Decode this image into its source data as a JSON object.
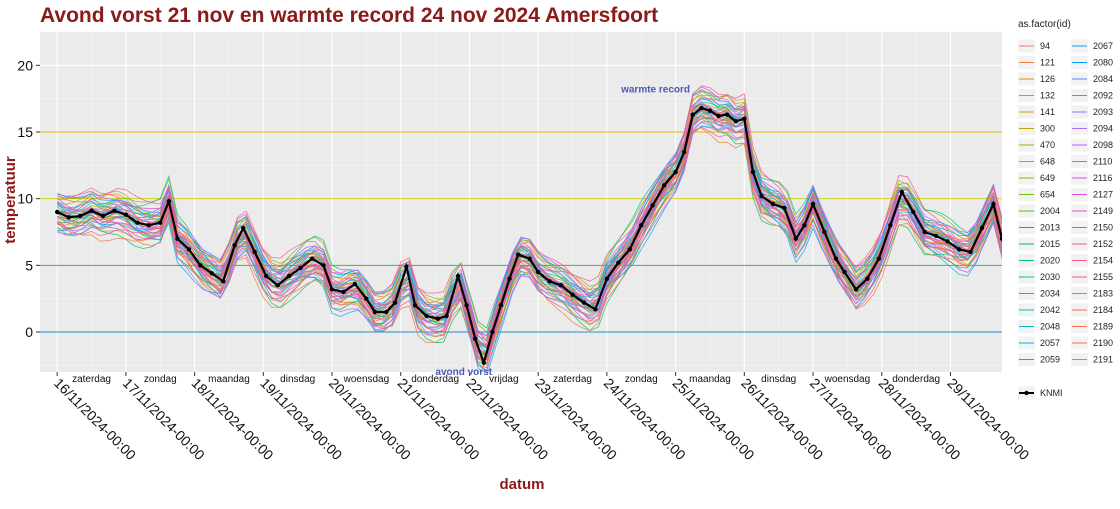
{
  "chart_data": {
    "type": "line",
    "title": "Avond vorst 21 nov en warmte record 24 nov 2024 Amersfoort",
    "xlabel": "datum",
    "ylabel": "temperatuur",
    "xlim": [
      "2024-11-15T18:00",
      "2024-11-29T18:00"
    ],
    "ylim": [
      -3,
      22.5
    ],
    "yticks": [
      0,
      5,
      10,
      15,
      20
    ],
    "xticks": [
      "16/11/2024-00:00",
      "17/11/2024-00:00",
      "18/11/2024-00:00",
      "19/11/2024-00:00",
      "20/11/2024-00:00",
      "21/11/2024-00:00",
      "22/11/2024-00:00",
      "23/11/2024-00:00",
      "24/11/2024-00:00",
      "25/11/2024-00:00",
      "26/11/2024-00:00",
      "27/11/2024-00:00",
      "28/11/2024-00:00",
      "29/11/2024-00:00"
    ],
    "day_labels": [
      "zaterdag",
      "zondag",
      "maandag",
      "dinsdag",
      "woensdag",
      "donderdag",
      "vrijdag",
      "zaterdag",
      "zondag",
      "maandag",
      "dinsdag",
      "woensdag",
      "donderdag"
    ],
    "hlines": [
      {
        "y": 0,
        "color": "#1f8fcf"
      },
      {
        "y": 5,
        "color": "#2aa02a"
      },
      {
        "y": 10,
        "color": "#c8c800"
      },
      {
        "y": 15,
        "color": "#e8b800"
      }
    ],
    "annotations": [
      {
        "text": "warmte record",
        "x": "2024-11-24T17:00",
        "y": 18.2
      },
      {
        "text": "avond vorst",
        "x": "2024-11-21T22:00",
        "y": -3
      }
    ],
    "legend": {
      "title": "as.factor(id)",
      "position": "right",
      "entries": [
        {
          "name": "94",
          "color": "#f8766d"
        },
        {
          "name": "121",
          "color": "#f2803a"
        },
        {
          "name": "126",
          "color": "#e88a1a"
        },
        {
          "name": "132",
          "color": "#dc9400"
        },
        {
          "name": "141",
          "color": "#cf9d00"
        },
        {
          "name": "300",
          "color": "#c0a500"
        },
        {
          "name": "470",
          "color": "#afad00"
        },
        {
          "name": "648",
          "color": "#9cb400"
        },
        {
          "name": "649",
          "color": "#86ba00"
        },
        {
          "name": "654",
          "color": "#6cc000"
        },
        {
          "name": "2004",
          "color": "#4bc400"
        },
        {
          "name": "2013",
          "color": "#00c61e"
        },
        {
          "name": "2015",
          "color": "#00c152"
        },
        {
          "name": "2020",
          "color": "#00c476"
        },
        {
          "name": "2030",
          "color": "#00c592"
        },
        {
          "name": "2034",
          "color": "#00c3a9"
        },
        {
          "name": "2042",
          "color": "#00c0bd"
        },
        {
          "name": "2048",
          "color": "#00bcce"
        },
        {
          "name": "2057",
          "color": "#00b6dc"
        },
        {
          "name": "2059",
          "color": "#00aee8"
        },
        {
          "name": "2067",
          "color": "#00a5f0"
        },
        {
          "name": "2080",
          "color": "#009bf5"
        },
        {
          "name": "2084",
          "color": "#4c8ffa"
        },
        {
          "name": "2092",
          "color": "#7382fc"
        },
        {
          "name": "2093",
          "color": "#8f77ff"
        },
        {
          "name": "2094",
          "color": "#a66bff"
        },
        {
          "name": "2098",
          "color": "#b95fff"
        },
        {
          "name": "2110",
          "color": "#c957f5"
        },
        {
          "name": "2116",
          "color": "#d652ea"
        },
        {
          "name": "2127",
          "color": "#e14ddb"
        },
        {
          "name": "2149",
          "color": "#ea4bcc"
        },
        {
          "name": "2150",
          "color": "#f04bbb"
        },
        {
          "name": "2152",
          "color": "#f54ea8"
        },
        {
          "name": "2154",
          "color": "#f85396"
        },
        {
          "name": "2155",
          "color": "#fa5a84"
        },
        {
          "name": "2183",
          "color": "#fa6170"
        },
        {
          "name": "2184",
          "color": "#f9685f"
        },
        {
          "name": "2189",
          "color": "#f66f50"
        },
        {
          "name": "2190",
          "color": "#f37646"
        },
        {
          "name": "2191",
          "color": "#f07d3e"
        }
      ],
      "knmi_label": "KNMI"
    },
    "knmi_series": {
      "name": "KNMI",
      "color": "#000000",
      "points": [
        [
          "2024-11-16T00:00",
          9.0
        ],
        [
          "2024-11-16T04:00",
          8.6
        ],
        [
          "2024-11-16T08:00",
          8.7
        ],
        [
          "2024-11-16T12:00",
          9.1
        ],
        [
          "2024-11-16T16:00",
          8.7
        ],
        [
          "2024-11-16T20:00",
          9.1
        ],
        [
          "2024-11-17T00:00",
          8.8
        ],
        [
          "2024-11-17T04:00",
          8.2
        ],
        [
          "2024-11-17T08:00",
          8.0
        ],
        [
          "2024-11-17T12:00",
          8.2
        ],
        [
          "2024-11-17T15:00",
          9.8
        ],
        [
          "2024-11-17T18:00",
          7.0
        ],
        [
          "2024-11-17T22:00",
          6.2
        ],
        [
          "2024-11-18T02:00",
          5.0
        ],
        [
          "2024-11-18T06:00",
          4.4
        ],
        [
          "2024-11-18T10:00",
          3.8
        ],
        [
          "2024-11-18T14:00",
          6.5
        ],
        [
          "2024-11-18T17:00",
          7.8
        ],
        [
          "2024-11-18T21:00",
          6.0
        ],
        [
          "2024-11-19T01:00",
          4.2
        ],
        [
          "2024-11-19T05:00",
          3.5
        ],
        [
          "2024-11-19T09:00",
          4.2
        ],
        [
          "2024-11-19T13:00",
          4.8
        ],
        [
          "2024-11-19T17:00",
          5.5
        ],
        [
          "2024-11-19T21:00",
          5.0
        ],
        [
          "2024-11-20T00:00",
          3.2
        ],
        [
          "2024-11-20T04:00",
          3.0
        ],
        [
          "2024-11-20T08:00",
          3.6
        ],
        [
          "2024-11-20T12:00",
          2.5
        ],
        [
          "2024-11-20T15:00",
          1.5
        ],
        [
          "2024-11-20T19:00",
          1.5
        ],
        [
          "2024-11-20T22:00",
          2.2
        ],
        [
          "2024-11-21T02:00",
          4.9
        ],
        [
          "2024-11-21T05:00",
          2.0
        ],
        [
          "2024-11-21T09:00",
          1.2
        ],
        [
          "2024-11-21T13:00",
          1.0
        ],
        [
          "2024-11-21T16:00",
          1.2
        ],
        [
          "2024-11-21T20:00",
          4.2
        ],
        [
          "2024-11-21T23:00",
          2.0
        ],
        [
          "2024-11-22T02:00",
          -0.5
        ],
        [
          "2024-11-22T05:00",
          -2.3
        ],
        [
          "2024-11-22T08:00",
          0.0
        ],
        [
          "2024-11-22T11:00",
          2.0
        ],
        [
          "2024-11-22T14:00",
          4.0
        ],
        [
          "2024-11-22T17:00",
          5.8
        ],
        [
          "2024-11-22T21:00",
          5.5
        ],
        [
          "2024-11-23T00:00",
          4.5
        ],
        [
          "2024-11-23T04:00",
          3.8
        ],
        [
          "2024-11-23T08:00",
          3.5
        ],
        [
          "2024-11-23T12:00",
          2.8
        ],
        [
          "2024-11-23T16:00",
          2.2
        ],
        [
          "2024-11-23T20:00",
          1.7
        ],
        [
          "2024-11-24T00:00",
          4.0
        ],
        [
          "2024-11-24T04:00",
          5.2
        ],
        [
          "2024-11-24T08:00",
          6.2
        ],
        [
          "2024-11-24T12:00",
          8.0
        ],
        [
          "2024-11-24T16:00",
          9.5
        ],
        [
          "2024-11-24T20:00",
          11.0
        ],
        [
          "2024-11-25T00:00",
          12.0
        ],
        [
          "2024-11-25T03:00",
          13.5
        ],
        [
          "2024-11-25T06:00",
          16.3
        ],
        [
          "2024-11-25T09:00",
          16.8
        ],
        [
          "2024-11-25T12:00",
          16.6
        ],
        [
          "2024-11-25T15:00",
          16.2
        ],
        [
          "2024-11-25T18:00",
          16.3
        ],
        [
          "2024-11-25T21:00",
          15.8
        ],
        [
          "2024-11-26T00:00",
          16.0
        ],
        [
          "2024-11-26T03:00",
          12.0
        ],
        [
          "2024-11-26T06:00",
          10.2
        ],
        [
          "2024-11-26T10:00",
          9.6
        ],
        [
          "2024-11-26T14:00",
          9.3
        ],
        [
          "2024-11-26T18:00",
          7.0
        ],
        [
          "2024-11-26T21:00",
          8.0
        ],
        [
          "2024-11-27T00:00",
          9.6
        ],
        [
          "2024-11-27T04:00",
          7.5
        ],
        [
          "2024-11-27T08:00",
          5.5
        ],
        [
          "2024-11-27T11:00",
          4.5
        ],
        [
          "2024-11-27T15:00",
          3.2
        ],
        [
          "2024-11-27T19:00",
          4.0
        ],
        [
          "2024-11-27T23:00",
          5.5
        ],
        [
          "2024-11-28T03:00",
          8.0
        ],
        [
          "2024-11-28T07:00",
          10.5
        ],
        [
          "2024-11-28T11:00",
          9.0
        ],
        [
          "2024-11-28T15:00",
          7.5
        ],
        [
          "2024-11-28T19:00",
          7.2
        ],
        [
          "2024-11-28T23:00",
          6.8
        ],
        [
          "2024-11-29T03:00",
          6.2
        ],
        [
          "2024-11-29T07:00",
          6.0
        ],
        [
          "2024-11-29T11:00",
          7.8
        ],
        [
          "2024-11-29T15:00",
          9.6
        ],
        [
          "2024-11-29T18:00",
          7.0
        ],
        [
          "2024-11-29T21:00",
          5.0
        ],
        [
          "2024-11-30T00:00",
          5.5
        ]
      ]
    }
  }
}
